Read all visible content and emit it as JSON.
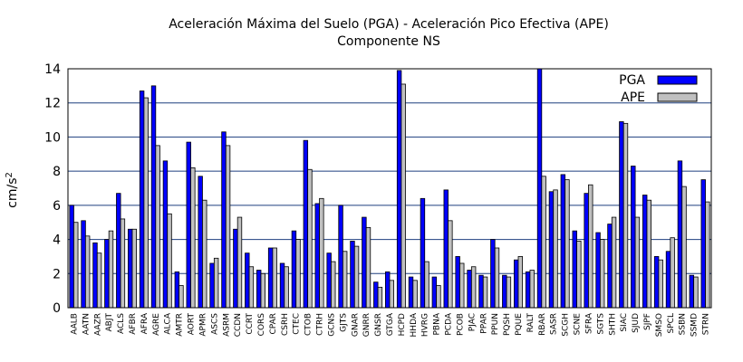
{
  "chart_data": {
    "type": "bar",
    "title": "Aceleración Máxima del Suelo (PGA) -  Aceleración Pico Efectiva (APE)",
    "subtitle": "Componente NS",
    "xlabel": "",
    "ylabel": "cm/s",
    "ylabel_sup": "2",
    "ylim": [
      0,
      14
    ],
    "yticks": [
      "0",
      "2",
      "4",
      "6",
      "8",
      "10",
      "12",
      "14"
    ],
    "grid": true,
    "legend_position": "top-right",
    "colors": {
      "PGA": "#0000ff",
      "APE": "#c0c0c0",
      "grid": "#1f3f7f"
    },
    "categories": [
      "AALB",
      "AATN",
      "AAZR",
      "ABJT",
      "ACLS",
      "AFBR",
      "AFRA",
      "AGRE",
      "ALCA",
      "AMTR",
      "AORT",
      "APMR",
      "ASCS",
      "ASRM",
      "CCDN",
      "CCRT",
      "CORS",
      "CPAR",
      "CSRH",
      "CTEC",
      "CTOB",
      "CTRH",
      "GCNS",
      "GJTS",
      "GNAR",
      "GNRR",
      "GNSR",
      "GTGA",
      "HCPD",
      "HHDA",
      "HVRG",
      "PBNA",
      "PCDA",
      "PCOB",
      "PJAC",
      "PPAR",
      "PPUN",
      "PQSH",
      "PQUE",
      "RALT",
      "RBAR",
      "SASR",
      "SCGH",
      "SCNE",
      "SFRA",
      "SGTS",
      "SHTH",
      "SIAC",
      "SJUD",
      "SJPF",
      "SMSO",
      "SPCL",
      "SSBN",
      "SSMD",
      "STRN"
    ],
    "series": [
      {
        "name": "PGA",
        "values": [
          6.0,
          5.1,
          3.8,
          4.0,
          6.7,
          4.6,
          12.7,
          13.0,
          8.6,
          2.1,
          9.7,
          7.7,
          2.6,
          10.3,
          4.6,
          3.2,
          2.2,
          3.5,
          2.6,
          4.5,
          9.8,
          6.1,
          3.2,
          6.0,
          3.9,
          5.3,
          1.5,
          2.1,
          13.9,
          1.8,
          6.4,
          1.8,
          6.9,
          3.0,
          2.2,
          1.9,
          4.0,
          1.9,
          2.8,
          2.1,
          14.0,
          6.8,
          7.8,
          4.5,
          6.7,
          4.4,
          4.9,
          10.9,
          8.3,
          6.6,
          3.0,
          3.3,
          8.6,
          1.9,
          7.5
        ]
      },
      {
        "name": "APE",
        "values": [
          5.0,
          4.2,
          3.2,
          4.5,
          5.2,
          4.6,
          12.3,
          9.5,
          5.5,
          1.3,
          8.2,
          6.3,
          2.9,
          9.5,
          5.3,
          2.4,
          2.0,
          3.5,
          2.4,
          4.0,
          8.1,
          6.4,
          2.7,
          3.3,
          3.6,
          4.7,
          1.2,
          1.6,
          13.1,
          1.6,
          2.7,
          1.3,
          5.1,
          2.6,
          2.4,
          1.8,
          3.5,
          1.8,
          3.0,
          2.2,
          7.7,
          6.9,
          7.5,
          3.9,
          7.2,
          4.0,
          5.3,
          10.8,
          5.3,
          6.3,
          2.8,
          4.1,
          7.1,
          1.8,
          6.2
        ]
      }
    ]
  }
}
